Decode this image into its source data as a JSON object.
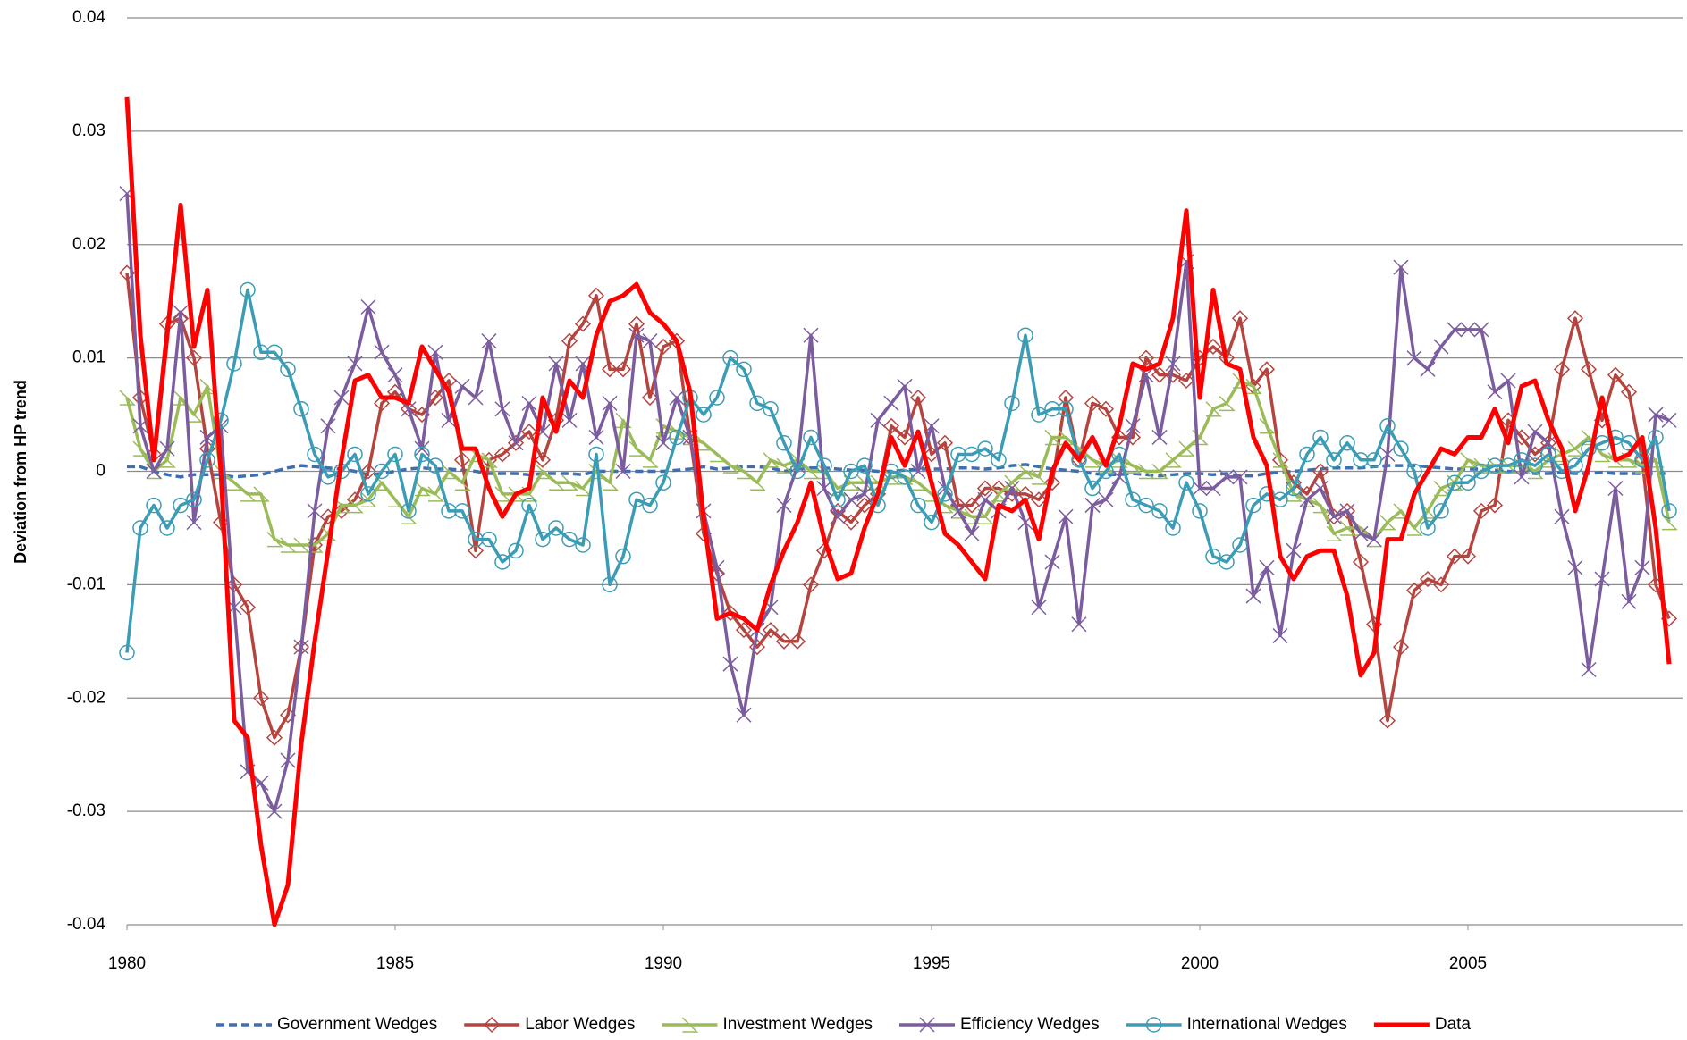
{
  "chart_data": {
    "type": "line",
    "y_label": "Deviation from HP trend",
    "x": [
      1980,
      1980.25,
      1980.5,
      1980.75,
      1981,
      1981.25,
      1981.5,
      1981.75,
      1982,
      1982.25,
      1982.5,
      1982.75,
      1983,
      1983.25,
      1983.5,
      1983.75,
      1984,
      1984.25,
      1984.5,
      1984.75,
      1985,
      1985.25,
      1985.5,
      1985.75,
      1986,
      1986.25,
      1986.5,
      1986.75,
      1987,
      1987.25,
      1987.5,
      1987.75,
      1988,
      1988.25,
      1988.5,
      1988.75,
      1989,
      1989.25,
      1989.5,
      1989.75,
      1990,
      1990.25,
      1990.5,
      1990.75,
      1991,
      1991.25,
      1991.5,
      1991.75,
      1992,
      1992.25,
      1992.5,
      1992.75,
      1993,
      1993.25,
      1993.5,
      1993.75,
      1994,
      1994.25,
      1994.5,
      1994.75,
      1995,
      1995.25,
      1995.5,
      1995.75,
      1996,
      1996.25,
      1996.5,
      1996.75,
      1997,
      1997.25,
      1997.5,
      1997.75,
      1998,
      1998.25,
      1998.5,
      1998.75,
      1999,
      1999.25,
      1999.5,
      1999.75,
      2000,
      2000.25,
      2000.5,
      2000.75,
      2001,
      2001.25,
      2001.5,
      2001.75,
      2002,
      2002.25,
      2002.5,
      2002.75,
      2003,
      2003.25,
      2003.5,
      2003.75,
      2004,
      2004.25,
      2004.5,
      2004.75,
      2005,
      2005.25,
      2005.5,
      2005.75,
      2006,
      2006.25,
      2006.5,
      2006.75,
      2007,
      2007.25,
      2007.5,
      2007.75,
      2008,
      2008.25,
      2008.5,
      2008.75
    ],
    "xlim": [
      1980,
      2009
    ],
    "xticks": [
      1980,
      1985,
      1990,
      1995,
      2000,
      2005
    ],
    "ylim": [
      -0.04,
      0.04
    ],
    "yticks": [
      -0.04,
      -0.03,
      -0.02,
      -0.01,
      0,
      0.01,
      0.02,
      0.03,
      0.04
    ],
    "grid": true,
    "legend": "bottom",
    "series": [
      {
        "name": "Government Wedges",
        "color": "#3f6fae",
        "style": "dashed",
        "marker": "none",
        "values": [
          0.0004,
          0.0004,
          0,
          -0.0003,
          -0.0005,
          -0.0003,
          -0.0003,
          -0.0003,
          -0.0005,
          -0.0004,
          -0.0003,
          0,
          0.0003,
          0.0005,
          0.0004,
          0.0003,
          0.0002,
          0,
          -0.0003,
          -0.0002,
          0,
          0.0002,
          0.0003,
          0.0002,
          0.0002,
          0.0001,
          0,
          -0.0002,
          -0.0002,
          -0.0002,
          -0.0003,
          -0.0002,
          -0.0002,
          -0.0002,
          -0.0003,
          0,
          0,
          0,
          0,
          0,
          0,
          0.0001,
          0.0002,
          0.0004,
          0.0002,
          0.0003,
          0.0004,
          0.0004,
          0.0003,
          0,
          0.0002,
          0.0003,
          0.0003,
          0.0002,
          0.0001,
          0.0001,
          0,
          0,
          0.0001,
          0.0002,
          0.0002,
          0.0002,
          0.0003,
          0.0003,
          0.0002,
          0.0003,
          0.0005,
          0.0006,
          0.0004,
          0.0002,
          0.0001,
          0,
          -0.0002,
          -0.0003,
          -0.0003,
          -0.0002,
          -0.0003,
          -0.0004,
          -0.0003,
          -0.0002,
          -0.0002,
          -0.0003,
          -0.0002,
          -0.0004,
          -0.0004,
          -0.0002,
          -0.0001,
          0,
          0.0001,
          0.0002,
          0.0003,
          0.0003,
          0.0003,
          0.0004,
          0.0005,
          0.0005,
          0.0005,
          0.0004,
          0.0003,
          0.0002,
          0.0002,
          0.0002,
          0.0001,
          0,
          -0.0001,
          -0.0002,
          -0.0002,
          -0.0001,
          -0.0002,
          -0.0002,
          -0.0001,
          -0.0002,
          -0.0002,
          -0.0002,
          -0.0002,
          -0.0002
        ]
      },
      {
        "name": "Labor Wedges",
        "color": "#b5443f",
        "style": "solid",
        "marker": "diamond",
        "values": [
          0.0175,
          0.0065,
          0.0015,
          0.013,
          0.0135,
          0.01,
          0.002,
          -0.0045,
          -0.01,
          -0.012,
          -0.02,
          -0.0235,
          -0.0215,
          -0.0155,
          -0.0065,
          -0.004,
          -0.0035,
          -0.0025,
          0,
          0.006,
          0.007,
          0.0055,
          0.005,
          0.0065,
          0.008,
          0.001,
          -0.007,
          0.001,
          0.0015,
          0.0025,
          0.0035,
          0.001,
          0.0045,
          0.0115,
          0.013,
          0.0155,
          0.009,
          0.009,
          0.013,
          0.0065,
          0.011,
          0.0115,
          0.003,
          -0.0055,
          -0.009,
          -0.0125,
          -0.014,
          -0.0155,
          -0.014,
          -0.015,
          -0.015,
          -0.01,
          -0.007,
          -0.0035,
          -0.0045,
          -0.003,
          -0.002,
          0.004,
          0.003,
          0.0065,
          0.0015,
          0.0025,
          -0.003,
          -0.003,
          -0.0015,
          -0.0015,
          -0.002,
          -0.002,
          -0.0025,
          -0.001,
          0.0065,
          0.001,
          0.006,
          0.0055,
          0.003,
          0.003,
          0.01,
          0.0085,
          0.0085,
          0.008,
          0.01,
          0.011,
          0.01,
          0.0135,
          0.0075,
          0.009,
          0.001,
          -0.001,
          -0.002,
          0,
          -0.004,
          -0.0035,
          -0.008,
          -0.0135,
          -0.022,
          -0.0155,
          -0.0105,
          -0.0095,
          -0.01,
          -0.0075,
          -0.0075,
          -0.0035,
          -0.003,
          0.0045,
          0.003,
          0.0015,
          0.0025,
          0.009,
          0.0135,
          0.009,
          0.0045,
          0.0085,
          0.007,
          0.001,
          -0.01,
          -0.013
        ]
      },
      {
        "name": "Investment Wedges",
        "color": "#9bbb59",
        "style": "solid",
        "marker": "half-triangle",
        "values": [
          0.0065,
          0.002,
          0,
          0.001,
          0.0065,
          0.005,
          0.0075,
          0,
          -0.001,
          -0.002,
          -0.002,
          -0.006,
          -0.0065,
          -0.0065,
          -0.0065,
          -0.0055,
          -0.003,
          -0.003,
          -0.0025,
          -0.001,
          -0.0025,
          -0.004,
          -0.0015,
          -0.002,
          0,
          -0.001,
          0.0015,
          0.001,
          -0.002,
          -0.002,
          -0.002,
          0,
          -0.001,
          -0.001,
          -0.0015,
          0,
          -0.001,
          0.0045,
          0.002,
          0.001,
          0.004,
          0.0035,
          0.003,
          0.0025,
          0.0015,
          0.0005,
          0,
          -0.001,
          0.001,
          0.0005,
          0.001,
          0,
          0,
          -0.0015,
          -0.001,
          -0.001,
          -0.001,
          -0.0005,
          -0.0005,
          -0.001,
          -0.002,
          -0.003,
          -0.0035,
          -0.004,
          -0.004,
          -0.002,
          -0.001,
          0,
          -0.0005,
          0.003,
          0.003,
          0.002,
          0.001,
          0.0005,
          0.001,
          0.0005,
          0,
          0,
          0.001,
          0.002,
          0.003,
          0.0055,
          0.006,
          0.008,
          0.0075,
          0.004,
          0.001,
          -0.002,
          -0.0025,
          -0.003,
          -0.0055,
          -0.005,
          -0.005,
          -0.006,
          -0.0045,
          -0.0035,
          -0.005,
          -0.0035,
          -0.0015,
          -0.001,
          0.001,
          0.0005,
          0.0005,
          0.0005,
          0.0005,
          0,
          0.001,
          0.0015,
          0.002,
          0.003,
          0.0015,
          0.001,
          0.001,
          0.0005,
          0.001,
          -0.0045
        ]
      },
      {
        "name": "Efficiency Wedges",
        "color": "#7b5c9e",
        "style": "solid",
        "marker": "x",
        "values": [
          0.0245,
          0.004,
          0,
          0.002,
          0.014,
          -0.0045,
          0.003,
          0.004,
          -0.012,
          -0.0265,
          -0.0275,
          -0.03,
          -0.0255,
          -0.0155,
          -0.0035,
          0.004,
          0.0065,
          0.0095,
          0.0145,
          0.0105,
          0.0085,
          0.0055,
          0.002,
          0.0105,
          0.0045,
          0.0075,
          0.0065,
          0.0115,
          0.0055,
          0.0025,
          0.006,
          0.0035,
          0.0095,
          0.0045,
          0.0095,
          0.003,
          0.006,
          0,
          0.012,
          0.0115,
          0.0025,
          0.0065,
          0.003,
          -0.0035,
          -0.0085,
          -0.017,
          -0.0215,
          -0.014,
          -0.012,
          -0.003,
          0.0005,
          0.012,
          -0.0015,
          -0.004,
          -0.0025,
          -0.002,
          0.0045,
          0.006,
          0.0075,
          0,
          0.004,
          -0.0015,
          -0.0035,
          -0.0055,
          -0.0025,
          -0.0035,
          -0.0015,
          -0.0045,
          -0.012,
          -0.008,
          -0.004,
          -0.0135,
          -0.003,
          -0.0025,
          -0.0005,
          0.004,
          0.0085,
          0.003,
          0.0095,
          0.0185,
          -0.0015,
          -0.0015,
          -0.0005,
          -0.0005,
          -0.011,
          -0.0085,
          -0.0145,
          -0.007,
          -0.0025,
          -0.0015,
          -0.004,
          -0.0035,
          -0.0055,
          -0.006,
          0.0015,
          0.018,
          0.01,
          0.009,
          0.011,
          0.0125,
          0.0125,
          0.0125,
          0.007,
          0.008,
          -0.0005,
          0.0035,
          0.0025,
          -0.004,
          -0.0085,
          -0.0175,
          -0.0095,
          -0.0015,
          -0.0115,
          -0.0085,
          0.005,
          0.0045
        ]
      },
      {
        "name": "International Wedges",
        "color": "#3b9cb5",
        "style": "solid",
        "marker": "circle",
        "values": [
          -0.016,
          -0.005,
          -0.003,
          -0.005,
          -0.003,
          -0.0025,
          0.001,
          0.0045,
          0.0095,
          0.016,
          0.0105,
          0.0105,
          0.009,
          0.0055,
          0.0015,
          -0.0005,
          0,
          0.0015,
          -0.002,
          0,
          0.0015,
          -0.0035,
          0.0015,
          0.0005,
          -0.0035,
          -0.0035,
          -0.006,
          -0.006,
          -0.008,
          -0.007,
          -0.003,
          -0.006,
          -0.005,
          -0.006,
          -0.0065,
          0.0015,
          -0.01,
          -0.0075,
          -0.0025,
          -0.003,
          -0.001,
          0.003,
          0.0065,
          0.005,
          0.0065,
          0.01,
          0.009,
          0.006,
          0.0055,
          0.0025,
          0,
          0.003,
          0.0005,
          -0.0025,
          0,
          0.0005,
          -0.003,
          0,
          -0.0005,
          -0.003,
          -0.0045,
          -0.002,
          0.0015,
          0.0015,
          0.002,
          0.001,
          0.006,
          0.012,
          0.005,
          0.0055,
          0.0055,
          0.001,
          -0.0015,
          0,
          0.0015,
          -0.0025,
          -0.003,
          -0.0035,
          -0.005,
          -0.001,
          -0.0035,
          -0.0075,
          -0.008,
          -0.0065,
          -0.003,
          -0.002,
          -0.0025,
          -0.0015,
          0.0015,
          0.003,
          0.001,
          0.0025,
          0.001,
          0.001,
          0.004,
          0.002,
          0,
          -0.005,
          -0.0035,
          -0.001,
          -0.001,
          0,
          0.0005,
          0.0005,
          0.001,
          0.0005,
          0.0015,
          0,
          0.0005,
          0.002,
          0.0025,
          0.003,
          0.0025,
          0.001,
          0.003,
          -0.0035
        ]
      },
      {
        "name": "Data",
        "color": "#ff0000",
        "style": "solid",
        "marker": "none",
        "values": [
          0.033,
          0.012,
          0.001,
          0.012,
          0.0235,
          0.011,
          0.016,
          0,
          -0.022,
          -0.0235,
          -0.033,
          -0.04,
          -0.0365,
          -0.024,
          -0.015,
          -0.007,
          0.001,
          0.008,
          0.0085,
          0.0065,
          0.0065,
          0.006,
          0.011,
          0.009,
          0.007,
          0.002,
          0.002,
          -0.0015,
          -0.004,
          -0.002,
          -0.0015,
          0.0065,
          0.0035,
          0.008,
          0.0065,
          0.012,
          0.015,
          0.0155,
          0.0165,
          0.014,
          0.013,
          0.0115,
          0.007,
          -0.004,
          -0.013,
          -0.0125,
          -0.013,
          -0.014,
          -0.01,
          -0.007,
          -0.0045,
          -0.001,
          -0.006,
          -0.0095,
          -0.009,
          -0.005,
          -0.002,
          0.003,
          0.0005,
          0.0035,
          -0.001,
          -0.0055,
          -0.0065,
          -0.008,
          -0.0095,
          -0.003,
          -0.0035,
          -0.0025,
          -0.006,
          0,
          0.0025,
          0.001,
          0.003,
          0.0005,
          0.004,
          0.0095,
          0.009,
          0.0095,
          0.0135,
          0.023,
          0.0065,
          0.016,
          0.0095,
          0.009,
          0.003,
          0.0005,
          -0.0075,
          -0.0095,
          -0.0075,
          -0.007,
          -0.007,
          -0.011,
          -0.018,
          -0.016,
          -0.006,
          -0.006,
          -0.002,
          0,
          0.002,
          0.0015,
          0.003,
          0.003,
          0.0055,
          0.0025,
          0.0075,
          0.008,
          0.0045,
          0.002,
          -0.0035,
          0.0005,
          0.0065,
          0.001,
          0.0015,
          0.003,
          -0.005,
          -0.017
        ]
      }
    ]
  }
}
